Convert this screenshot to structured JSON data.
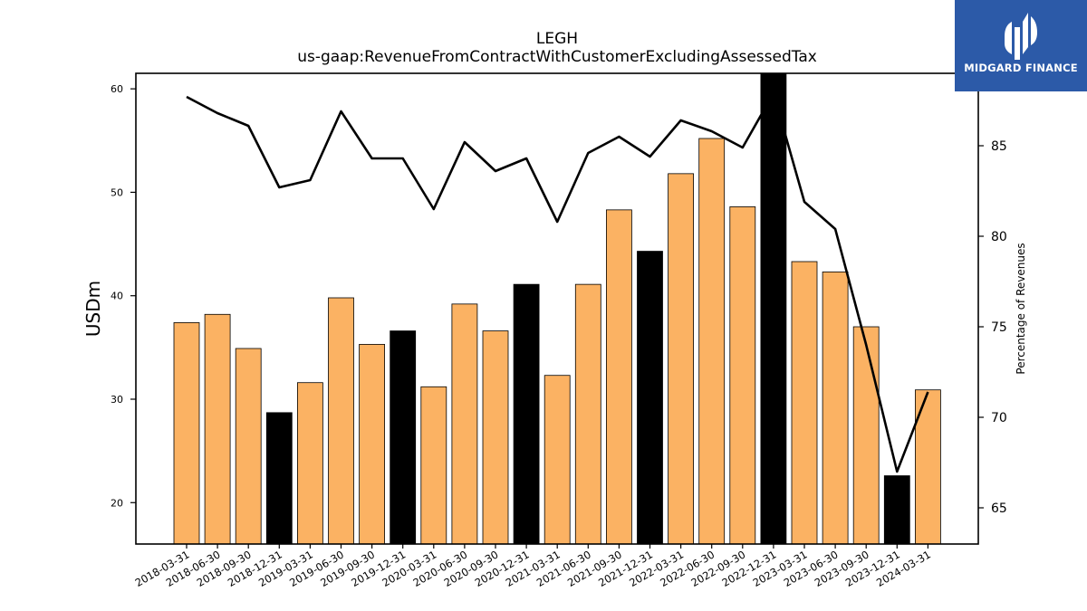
{
  "chart_data": {
    "type": "bar",
    "title": "LEGH",
    "subtitle": "us-gaap:RevenueFromContractWithCustomerExcludingAssessedTax",
    "ylabel": "USDm",
    "y2label": "Percentage of Revenues",
    "ylim": [
      16,
      61.5
    ],
    "y2lim": [
      63,
      89
    ],
    "yticks": [
      20,
      30,
      40,
      50,
      60
    ],
    "y2ticks": [
      65,
      70,
      75,
      80,
      85
    ],
    "categories": [
      "2018-03-31",
      "2018-06-30",
      "2018-09-30",
      "2018-12-31",
      "2019-03-31",
      "2019-06-30",
      "2019-09-30",
      "2019-12-31",
      "2020-03-31",
      "2020-06-30",
      "2020-09-30",
      "2020-12-31",
      "2021-03-31",
      "2021-06-30",
      "2021-09-30",
      "2021-12-31",
      "2022-03-31",
      "2022-06-30",
      "2022-09-30",
      "2022-12-31",
      "2023-03-31",
      "2023-06-30",
      "2023-09-30",
      "2023-12-31",
      "2024-03-31"
    ],
    "series": [
      {
        "type": "bar",
        "values": [
          37.4,
          38.2,
          34.9,
          28.7,
          31.6,
          39.8,
          35.3,
          36.6,
          31.2,
          39.2,
          36.6,
          41.1,
          32.3,
          41.1,
          48.3,
          44.3,
          51.8,
          55.2,
          48.6,
          61.5,
          43.3,
          42.3,
          37.0,
          22.6,
          30.9
        ],
        "colors": [
          "#fbb263",
          "#fbb263",
          "#fbb263",
          "#000000",
          "#fbb263",
          "#fbb263",
          "#fbb263",
          "#000000",
          "#fbb263",
          "#fbb263",
          "#fbb263",
          "#000000",
          "#fbb263",
          "#fbb263",
          "#fbb263",
          "#000000",
          "#fbb263",
          "#fbb263",
          "#fbb263",
          "#000000",
          "#fbb263",
          "#fbb263",
          "#fbb263",
          "#000000",
          "#fbb263"
        ]
      },
      {
        "type": "line",
        "axis": "right",
        "color": "#000000",
        "values": [
          87.7,
          86.8,
          86.1,
          82.7,
          83.1,
          86.9,
          84.3,
          84.3,
          81.5,
          85.2,
          83.6,
          84.3,
          80.8,
          84.6,
          85.5,
          84.4,
          86.4,
          85.8,
          84.9,
          87.9,
          81.9,
          80.4,
          74.0,
          67.0,
          71.4
        ]
      }
    ]
  },
  "logo": {
    "text": "MIDGARD FINANCE",
    "bg_color": "#2c5aa8"
  }
}
